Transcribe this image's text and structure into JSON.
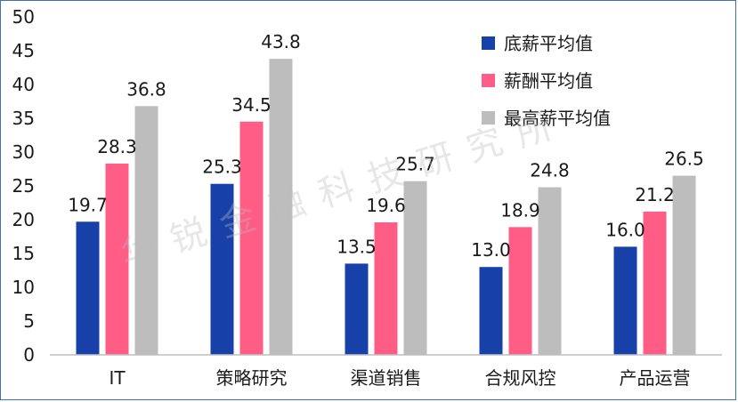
{
  "chart_data": {
    "type": "bar",
    "categories": [
      "IT",
      "策略研究",
      "渠道销售",
      "合规风控",
      "产品运营"
    ],
    "series": [
      {
        "name": "底薪平均值",
        "values": [
          19.7,
          25.3,
          13.5,
          13.0,
          16.0
        ]
      },
      {
        "name": "薪酬平均值",
        "values": [
          28.3,
          34.5,
          19.6,
          18.9,
          21.2
        ]
      },
      {
        "name": "最高薪平均值",
        "values": [
          36.8,
          43.8,
          25.7,
          24.8,
          26.5
        ]
      }
    ],
    "data_labels": [
      [
        "19.7",
        "25.3",
        "13.5",
        "13.0",
        "16.0"
      ],
      [
        "28.3",
        "34.5",
        "19.6",
        "18.9",
        "21.2"
      ],
      [
        "36.8",
        "43.8",
        "25.7",
        "24.8",
        "26.5"
      ]
    ],
    "colors": [
      "#1741a8",
      "#ff5c86",
      "#bdbdbd"
    ],
    "ylim": [
      0,
      50
    ],
    "yticks": [
      0,
      5,
      10,
      15,
      20,
      25,
      30,
      35,
      40,
      45,
      50
    ],
    "grid": false,
    "legend_position": "top-right",
    "title": "",
    "xlabel": "",
    "ylabel": ""
  },
  "watermark": "华锐金融科技研究所"
}
